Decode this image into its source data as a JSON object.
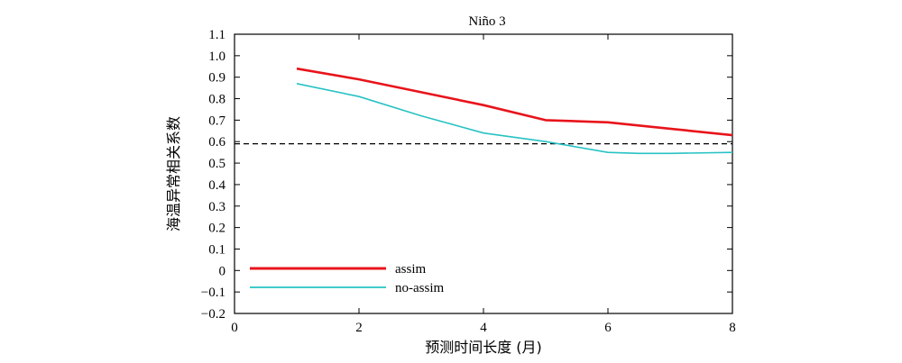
{
  "chart_data": {
    "type": "line",
    "title": "Niño 3",
    "xlabel": "预测时间长度 (月)",
    "ylabel": "海温异常相关系数",
    "xlim": [
      0,
      8
    ],
    "ylim": [
      -0.2,
      1.1
    ],
    "xticks": [
      0,
      2,
      4,
      6,
      8
    ],
    "xtick_labels": [
      "0",
      "2",
      "4",
      "6",
      "8"
    ],
    "yticks": [
      1.1,
      1.0,
      0.9,
      0.8,
      0.7,
      0.6,
      0.5,
      0.4,
      0.3,
      0.2,
      0.1,
      0,
      -0.1,
      -0.2
    ],
    "ytick_labels": [
      "1.1",
      "1.0",
      "0.9",
      "0.8",
      "0.7",
      "0.6",
      "0.5",
      "0.4",
      "0.3",
      "0.2",
      "0.1",
      "0",
      "−0.1",
      "−0.2"
    ],
    "grid": false,
    "legend_position": "lower-left",
    "series": [
      {
        "name": "assim",
        "color": "#e8141b",
        "x": [
          1,
          2,
          3,
          4,
          5,
          6,
          7,
          8
        ],
        "values": [
          0.94,
          0.89,
          0.83,
          0.77,
          0.7,
          0.69,
          0.66,
          0.63
        ]
      },
      {
        "name": "no-assim",
        "color": "#27c2c4",
        "x": [
          1,
          2,
          3,
          4,
          5,
          6,
          6.5,
          7,
          8
        ],
        "values": [
          0.87,
          0.81,
          0.72,
          0.64,
          0.6,
          0.55,
          0.545,
          0.545,
          0.55
        ]
      }
    ],
    "reference_line": {
      "y": 0.59,
      "style": "dashed",
      "color": "#000000"
    }
  }
}
